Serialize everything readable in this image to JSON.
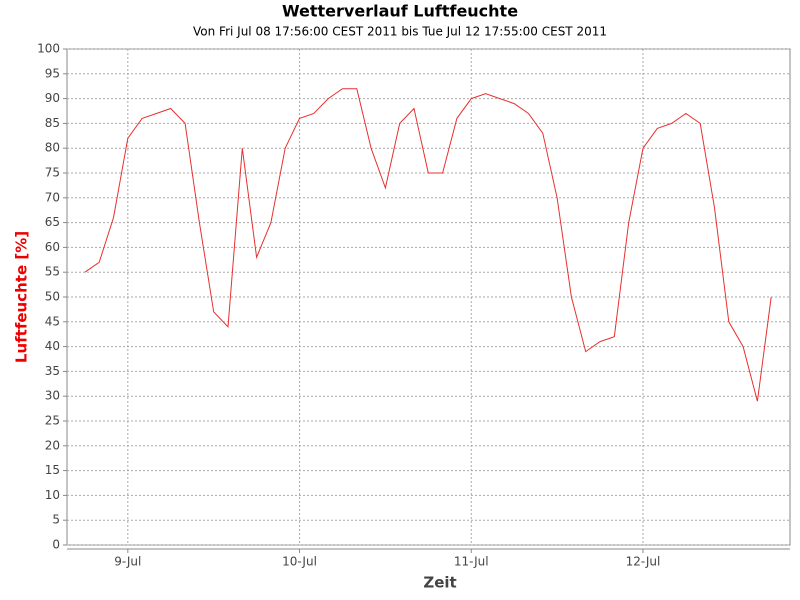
{
  "chart_data": {
    "type": "line",
    "title": "Wetterverlauf Luftfeuchte",
    "subtitle": "Von Fri Jul 08 17:56:00 CEST 2011 bis Tue Jul 12 17:55:00 CEST 2011",
    "x_label": "Zeit",
    "y_label": "Luftfeuchte [%]",
    "x": [
      "2011-07-08T18:00",
      "2011-07-08T20:00",
      "2011-07-08T22:00",
      "2011-07-09T00:00",
      "2011-07-09T02:00",
      "2011-07-09T04:00",
      "2011-07-09T06:00",
      "2011-07-09T08:00",
      "2011-07-09T10:00",
      "2011-07-09T12:00",
      "2011-07-09T14:00",
      "2011-07-09T16:00",
      "2011-07-09T18:00",
      "2011-07-09T20:00",
      "2011-07-09T22:00",
      "2011-07-10T00:00",
      "2011-07-10T02:00",
      "2011-07-10T04:00",
      "2011-07-10T06:00",
      "2011-07-10T08:00",
      "2011-07-10T10:00",
      "2011-07-10T12:00",
      "2011-07-10T14:00",
      "2011-07-10T16:00",
      "2011-07-10T18:00",
      "2011-07-10T20:00",
      "2011-07-10T22:00",
      "2011-07-11T00:00",
      "2011-07-11T02:00",
      "2011-07-11T04:00",
      "2011-07-11T06:00",
      "2011-07-11T08:00",
      "2011-07-11T10:00",
      "2011-07-11T12:00",
      "2011-07-11T14:00",
      "2011-07-11T16:00",
      "2011-07-11T18:00",
      "2011-07-11T20:00",
      "2011-07-11T22:00",
      "2011-07-12T00:00",
      "2011-07-12T02:00",
      "2011-07-12T04:00",
      "2011-07-12T06:00",
      "2011-07-12T08:00",
      "2011-07-12T10:00",
      "2011-07-12T12:00",
      "2011-07-12T14:00",
      "2011-07-12T16:00",
      "2011-07-12T17:55"
    ],
    "series": [
      {
        "name": "Luftfeuchte",
        "color": "#e83030",
        "values": [
          55,
          57,
          66,
          82,
          86,
          87,
          88,
          85,
          65,
          47,
          44,
          80,
          58,
          65,
          80,
          86,
          87,
          90,
          92,
          92,
          80,
          72,
          85,
          88,
          75,
          75,
          86,
          90,
          91,
          90,
          89,
          87,
          83,
          70,
          50,
          39,
          41,
          42,
          65,
          80,
          84,
          85,
          87,
          85,
          68,
          45,
          40,
          29,
          50
        ]
      }
    ],
    "xlim": [
      "2011-07-08T15:30",
      "2011-07-12T20:33"
    ],
    "xticks": [
      {
        "value": "2011-07-09T00:00",
        "label": "9-Jul"
      },
      {
        "value": "2011-07-10T00:00",
        "label": "10-Jul"
      },
      {
        "value": "2011-07-11T00:00",
        "label": "11-Jul"
      },
      {
        "value": "2011-07-12T00:00",
        "label": "12-Jul"
      }
    ],
    "ylim": [
      0,
      100
    ],
    "yticks": [
      0,
      5,
      10,
      15,
      20,
      25,
      30,
      35,
      40,
      45,
      50,
      55,
      60,
      65,
      70,
      75,
      80,
      85,
      90,
      95,
      100
    ],
    "grid": true
  }
}
